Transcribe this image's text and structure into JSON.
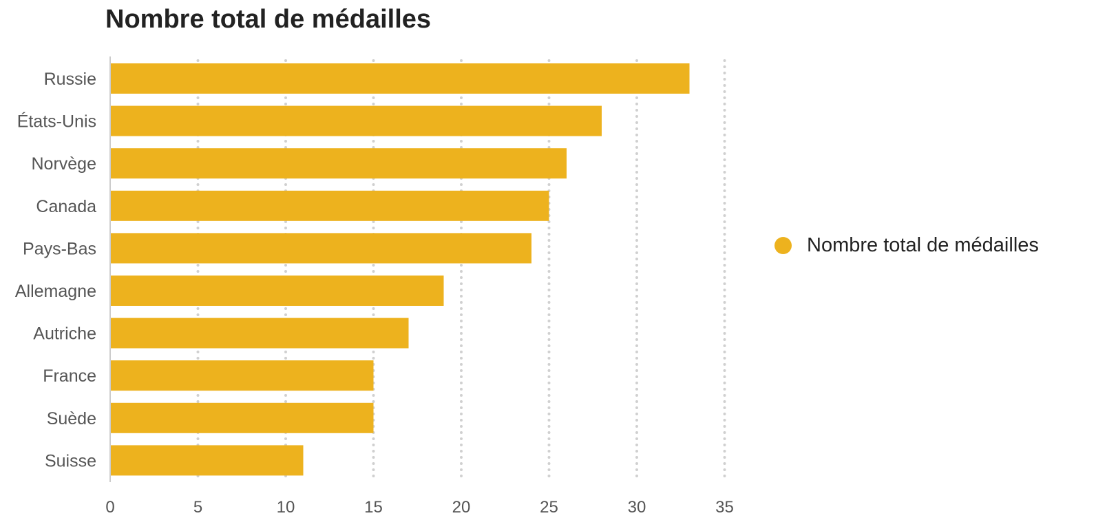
{
  "colors": {
    "bar": "#EDB21E",
    "grid": "#d0d0d0",
    "axis": "#bbbbbb"
  },
  "chart_data": {
    "type": "bar",
    "orientation": "horizontal",
    "title": "Nombre total de médailles",
    "xlabel": "",
    "ylabel": "",
    "xlim": [
      0,
      35
    ],
    "xticks": [
      0,
      5,
      10,
      15,
      20,
      25,
      30,
      35
    ],
    "grid": "vertical-dotted",
    "legend_position": "right",
    "categories": [
      "Russie",
      "États-Unis",
      "Norvège",
      "Canada",
      "Pays-Bas",
      "Allemagne",
      "Autriche",
      "France",
      "Suède",
      "Suisse"
    ],
    "series": [
      {
        "name": "Nombre total de médailles",
        "values": [
          33,
          28,
          26,
          25,
          24,
          19,
          17,
          15,
          15,
          11
        ]
      }
    ]
  }
}
